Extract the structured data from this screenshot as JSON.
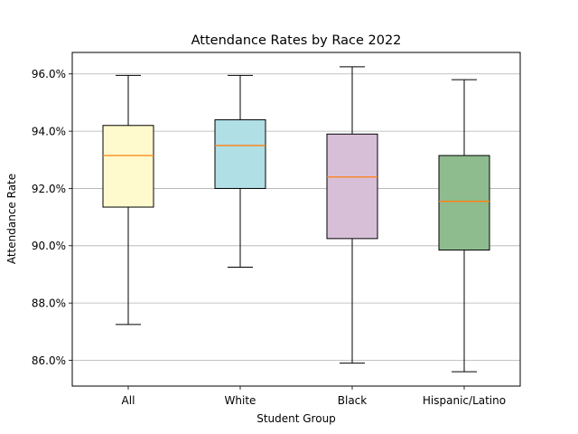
{
  "chart_data": {
    "type": "box",
    "title": "Attendance Rates by Race 2022",
    "xlabel": "Student Group",
    "ylabel": "Attendance Rate",
    "ylim": [
      85.1,
      96.75
    ],
    "yticks": [
      86,
      88,
      90,
      92,
      94,
      96
    ],
    "ytick_labels": [
      "86.0%",
      "88.0%",
      "90.0%",
      "92.0%",
      "94.0%",
      "96.0%"
    ],
    "grid": "y",
    "categories": [
      "All",
      "White",
      "Black",
      "Hispanic/Latino"
    ],
    "boxes": [
      {
        "category": "All",
        "whisker_low": 87.25,
        "q1": 91.35,
        "median": 93.15,
        "q3": 94.2,
        "whisker_high": 95.95,
        "color": "#fffacd"
      },
      {
        "category": "White",
        "whisker_low": 89.25,
        "q1": 92.0,
        "median": 93.5,
        "q3": 94.4,
        "whisker_high": 95.95,
        "color": "#b0dfe5"
      },
      {
        "category": "Black",
        "whisker_low": 85.9,
        "q1": 90.25,
        "median": 92.4,
        "q3": 93.9,
        "whisker_high": 96.25,
        "color": "#d8bfd8"
      },
      {
        "category": "Hispanic/Latino",
        "whisker_low": 85.6,
        "q1": 89.85,
        "median": 91.55,
        "q3": 93.15,
        "whisker_high": 95.8,
        "color": "#8fbc8f"
      }
    ]
  }
}
